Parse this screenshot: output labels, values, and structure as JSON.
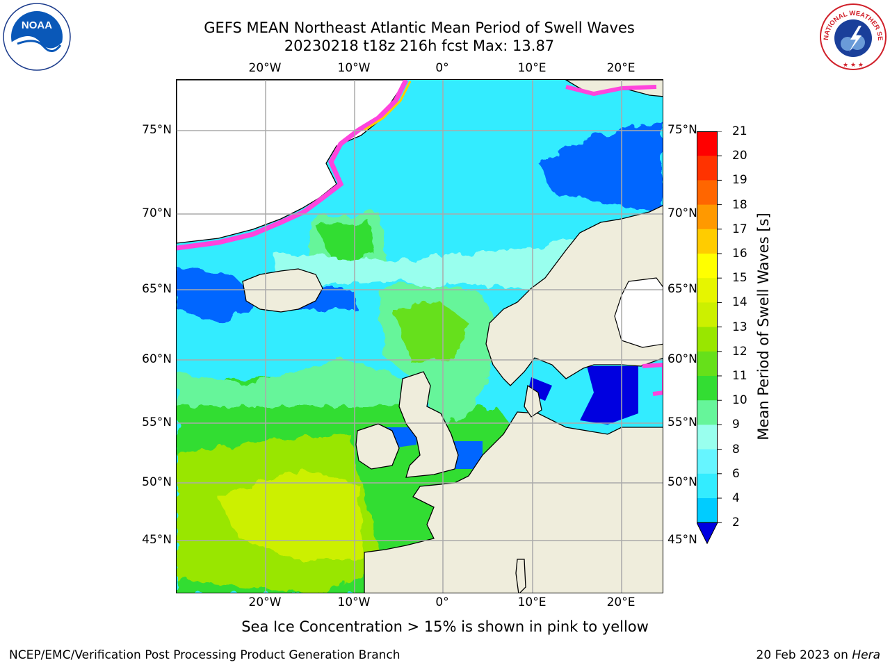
{
  "header": {
    "title_line1": "GEFS MEAN Northeast Atlantic Mean Period of Swell Waves",
    "title_line2": "20230218 t18z 216h fcst   Max: 13.87"
  },
  "axes": {
    "lon_labels": [
      "20°W",
      "10°W",
      "0°",
      "10°E",
      "20°E"
    ],
    "lat_labels": [
      "75°N",
      "70°N",
      "65°N",
      "60°N",
      "55°N",
      "50°N",
      "45°N"
    ]
  },
  "colorbar": {
    "title": "Mean Period of Swell Waves [s]",
    "ticks": [
      "2",
      "4",
      "6",
      "8",
      "9",
      "10",
      "11",
      "12",
      "13",
      "14",
      "15",
      "16",
      "17",
      "18",
      "19",
      "20",
      "21"
    ],
    "colors": [
      "#0066ff",
      "#00ccff",
      "#33ecff",
      "#66f5ff",
      "#99ffee",
      "#66f59a",
      "#33dd33",
      "#66e01a",
      "#99e600",
      "#ccf000",
      "#e6f500",
      "#ffff00",
      "#ffcc00",
      "#ff9900",
      "#ff6600",
      "#ff3300",
      "#ff0000"
    ],
    "under_color": "#0000e0"
  },
  "map": {
    "land_color": "#efeddc",
    "ice_note_colors": [
      "#ff44dd",
      "#ffcc00"
    ]
  },
  "logos": {
    "left": "NOAA",
    "right": "NATIONAL WEATHER SERVICE"
  },
  "caption": "Sea Ice Concentration > 15% is shown in pink to yellow",
  "footer": {
    "left": "NCEP/EMC/Verification Post Processing Product Generation Branch",
    "right_date": "20 Feb 2023 on ",
    "right_machine": "Hera"
  }
}
